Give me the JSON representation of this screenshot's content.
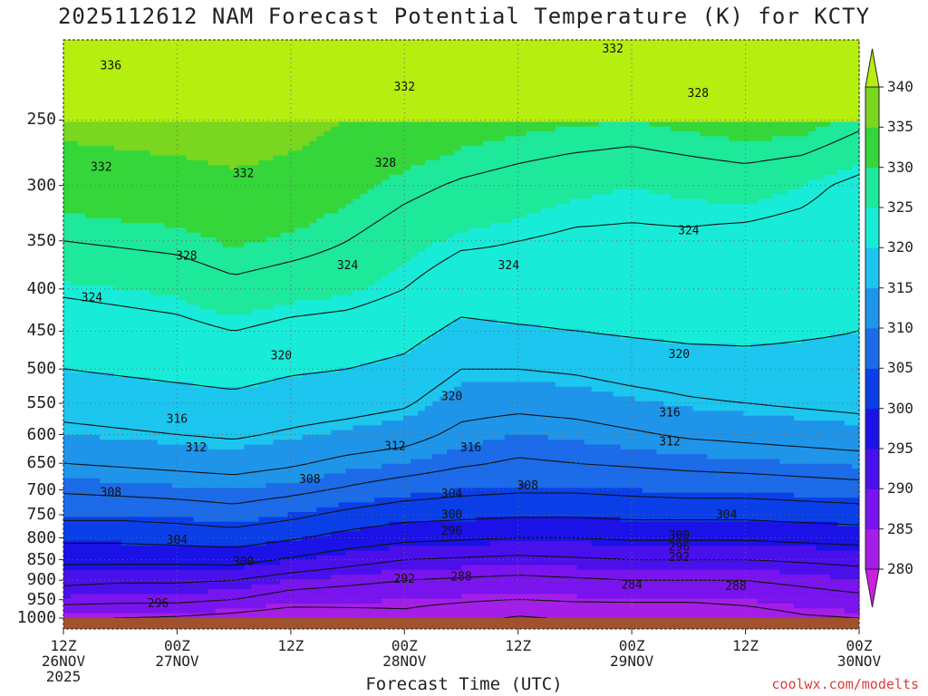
{
  "title": "2025112612 NAM Forecast Potential Temperature (K) for KCTY",
  "credit": "coolwx.com/modelts",
  "chart_data": {
    "type": "heatmap",
    "title": "2025112612 NAM Forecast Potential Temperature (K) for KCTY",
    "xlabel": "Forecast Time (UTC)",
    "ylabel": "",
    "x_range_hours": [
      0,
      84
    ],
    "y_range_hpa": [
      1000,
      200
    ],
    "y_scale": "log-pressure",
    "grid": true,
    "x_ticks": [
      {
        "hour": 0,
        "label": "12Z",
        "date": "26NOV",
        "year": "2025"
      },
      {
        "hour": 12,
        "label": "00Z",
        "date": "27NOV",
        "year": ""
      },
      {
        "hour": 24,
        "label": "12Z",
        "date": "",
        "year": ""
      },
      {
        "hour": 36,
        "label": "00Z",
        "date": "28NOV",
        "year": ""
      },
      {
        "hour": 48,
        "label": "12Z",
        "date": "",
        "year": ""
      },
      {
        "hour": 60,
        "label": "00Z",
        "date": "29NOV",
        "year": ""
      },
      {
        "hour": 72,
        "label": "12Z",
        "date": "",
        "year": ""
      },
      {
        "hour": 84,
        "label": "00Z",
        "date": "30NOV",
        "year": ""
      }
    ],
    "y_ticks": [
      250,
      300,
      350,
      400,
      450,
      500,
      550,
      600,
      650,
      700,
      750,
      800,
      850,
      900,
      950,
      1000
    ],
    "colorbar": {
      "levels": [
        280,
        285,
        290,
        295,
        300,
        305,
        310,
        315,
        320,
        325,
        330,
        335,
        340
      ],
      "colors": [
        "#cc1fe0",
        "#a51ee8",
        "#7a14ee",
        "#4a10ec",
        "#1a12e6",
        "#0a3fe8",
        "#1c6be8",
        "#1f95ea",
        "#1cc6ee",
        "#18ecd8",
        "#1ee89a",
        "#34d63a",
        "#7ad61e",
        "#b6ee10"
      ],
      "extend": "both"
    },
    "surface_color": "#a0522d",
    "theta_profiles": [
      {
        "hour": 0,
        "theta_k": [
          284.0,
          289.5,
          293.0,
          297.0,
          301.0,
          305.0,
          308.5,
          312.0,
          315.0,
          317.5,
          320.0,
          322.0,
          324.5,
          328.0,
          332.0,
          336.5
        ]
      },
      {
        "hour": 6,
        "theta_k": [
          284.0,
          289.0,
          292.5,
          297.0,
          301.0,
          305.0,
          309.0,
          312.5,
          315.5,
          318.0,
          320.5,
          322.5,
          325.0,
          328.5,
          332.5,
          337.0
        ]
      },
      {
        "hour": 12,
        "theta_k": [
          283.5,
          289.0,
          292.5,
          297.0,
          301.5,
          305.5,
          309.5,
          313.0,
          316.0,
          318.5,
          321.0,
          323.0,
          325.5,
          329.0,
          333.0,
          337.5
        ]
      },
      {
        "hour": 18,
        "theta_k": [
          282.5,
          288.0,
          292.0,
          297.5,
          302.0,
          306.5,
          310.0,
          313.5,
          316.5,
          319.0,
          321.5,
          324.0,
          327.0,
          330.5,
          334.0,
          338.0
        ]
      },
      {
        "hour": 24,
        "theta_k": [
          281.0,
          286.0,
          290.0,
          295.5,
          300.5,
          305.0,
          309.0,
          312.5,
          315.5,
          318.0,
          320.5,
          323.0,
          326.0,
          329.5,
          333.0,
          337.0
        ]
      },
      {
        "hour": 30,
        "theta_k": [
          282.0,
          285.5,
          289.0,
          293.5,
          298.5,
          303.0,
          307.5,
          311.0,
          314.5,
          317.5,
          320.0,
          322.5,
          325.5,
          328.0,
          331.0,
          335.0
        ]
      },
      {
        "hour": 36,
        "theta_k": [
          283.0,
          285.0,
          288.0,
          292.0,
          297.0,
          301.5,
          306.0,
          310.0,
          313.5,
          316.5,
          319.0,
          321.5,
          324.0,
          326.0,
          329.0,
          333.5
        ]
      },
      {
        "hour": 42,
        "theta_k": [
          281.5,
          284.5,
          287.5,
          291.5,
          296.5,
          301.0,
          305.0,
          308.5,
          311.0,
          313.5,
          316.0,
          319.0,
          322.0,
          324.5,
          327.5,
          332.0
        ]
      },
      {
        "hour": 48,
        "theta_k": [
          279.5,
          284.0,
          287.0,
          291.0,
          296.0,
          300.5,
          304.5,
          307.5,
          310.0,
          313.0,
          316.0,
          319.5,
          322.5,
          324.0,
          326.5,
          331.0
        ]
      },
      {
        "hour": 54,
        "theta_k": [
          280.5,
          284.5,
          287.5,
          291.5,
          296.0,
          300.5,
          304.5,
          308.0,
          310.5,
          313.5,
          316.5,
          320.0,
          322.5,
          323.5,
          325.5,
          330.5
        ]
      },
      {
        "hour": 60,
        "theta_k": [
          281.0,
          284.5,
          288.0,
          292.0,
          296.5,
          301.0,
          305.0,
          308.5,
          311.5,
          314.5,
          317.5,
          320.5,
          323.0,
          323.5,
          325.0,
          330.0
        ]
      },
      {
        "hour": 66,
        "theta_k": [
          281.0,
          284.5,
          288.0,
          292.0,
          296.5,
          301.0,
          305.5,
          309.0,
          312.5,
          315.5,
          318.0,
          321.0,
          323.0,
          323.5,
          325.5,
          331.0
        ]
      },
      {
        "hour": 72,
        "theta_k": [
          282.0,
          285.0,
          288.0,
          292.0,
          296.5,
          301.0,
          305.5,
          309.5,
          313.0,
          316.0,
          318.5,
          321.0,
          322.5,
          323.0,
          326.0,
          332.0
        ]
      },
      {
        "hour": 78,
        "theta_k": [
          283.5,
          286.0,
          289.0,
          292.5,
          297.0,
          301.5,
          306.0,
          310.0,
          313.5,
          316.5,
          318.5,
          320.5,
          322.0,
          322.5,
          325.0,
          331.5
        ]
      },
      {
        "hour": 84,
        "theta_k": [
          284.0,
          287.0,
          290.0,
          293.0,
          297.5,
          302.0,
          306.5,
          310.5,
          314.0,
          317.0,
          318.5,
          320.0,
          321.0,
          321.5,
          323.0,
          329.0
        ]
      }
    ],
    "contour_interval_k": 4,
    "contour_labels": [
      {
        "text": "336",
        "hour": 5,
        "hpa": 215
      },
      {
        "text": "332",
        "hour": 36,
        "hpa": 228
      },
      {
        "text": "332",
        "hour": 4,
        "hpa": 285
      },
      {
        "text": "332",
        "hour": 19,
        "hpa": 290
      },
      {
        "text": "332",
        "hour": 58,
        "hpa": 205
      },
      {
        "text": "328",
        "hour": 67,
        "hpa": 232
      },
      {
        "text": "328",
        "hour": 34,
        "hpa": 282
      },
      {
        "text": "328",
        "hour": 13,
        "hpa": 365
      },
      {
        "text": "324",
        "hour": 30,
        "hpa": 375
      },
      {
        "text": "324",
        "hour": 47,
        "hpa": 375
      },
      {
        "text": "324",
        "hour": 66,
        "hpa": 340
      },
      {
        "text": "324",
        "hour": 3,
        "hpa": 410
      },
      {
        "text": "320",
        "hour": 23,
        "hpa": 482
      },
      {
        "text": "320",
        "hour": 41,
        "hpa": 540
      },
      {
        "text": "320",
        "hour": 65,
        "hpa": 480
      },
      {
        "text": "316",
        "hour": 12,
        "hpa": 575
      },
      {
        "text": "316",
        "hour": 43,
        "hpa": 622
      },
      {
        "text": "316",
        "hour": 64,
        "hpa": 565
      },
      {
        "text": "312",
        "hour": 14,
        "hpa": 622
      },
      {
        "text": "312",
        "hour": 35,
        "hpa": 620
      },
      {
        "text": "312",
        "hour": 64,
        "hpa": 612
      },
      {
        "text": "308",
        "hour": 5,
        "hpa": 705
      },
      {
        "text": "308",
        "hour": 26,
        "hpa": 680
      },
      {
        "text": "308",
        "hour": 49,
        "hpa": 692
      },
      {
        "text": "304",
        "hour": 12,
        "hpa": 805
      },
      {
        "text": "304",
        "hour": 41,
        "hpa": 708
      },
      {
        "text": "304",
        "hour": 70,
        "hpa": 750
      },
      {
        "text": "300",
        "hour": 19,
        "hpa": 855
      },
      {
        "text": "300",
        "hour": 41,
        "hpa": 750
      },
      {
        "text": "300",
        "hour": 65,
        "hpa": 795
      },
      {
        "text": "296",
        "hour": 10,
        "hpa": 960
      },
      {
        "text": "296",
        "hour": 41,
        "hpa": 785
      },
      {
        "text": "296",
        "hour": 65,
        "hpa": 820
      },
      {
        "text": "292",
        "hour": 36,
        "hpa": 897
      },
      {
        "text": "292",
        "hour": 65,
        "hpa": 845
      },
      {
        "text": "288",
        "hour": 42,
        "hpa": 892
      },
      {
        "text": "288",
        "hour": 71,
        "hpa": 915
      },
      {
        "text": "284",
        "hour": 60,
        "hpa": 912
      }
    ]
  }
}
